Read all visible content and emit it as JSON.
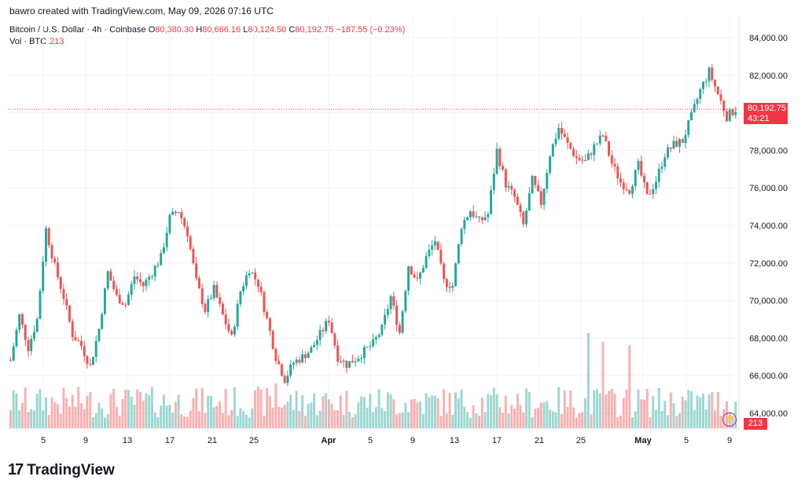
{
  "header": {
    "text": "bawro created with TradingView.com, May 09, 2026 07:16 UTC"
  },
  "legend": {
    "symbol": "Bitcoin / U.S. Dollar · 4h · Coinbase",
    "o_label": "O",
    "o": "80,380.30",
    "h_label": "H",
    "h": "80,666.16",
    "l_label": "L",
    "l": "80,124.50",
    "c_label": "C",
    "c": "80,192.75",
    "change": "−187.55 (−0.23%)"
  },
  "volume_legend": {
    "label": "Vol · BTC",
    "value": "213"
  },
  "price_tag": {
    "price": "80,192.75",
    "countdown": "43:21"
  },
  "volume_tag": "213",
  "watermark": "TradingView",
  "colors": {
    "up": "#26a69a",
    "down": "#ef5350",
    "grid": "#f0f3fa",
    "last_line": "#f23645"
  },
  "chart_data": {
    "type": "candlestick",
    "y_axis_ticks": [
      "84,000.00",
      "82,000.00",
      "80,000.00",
      "78,000.00",
      "76,000.00",
      "74,000.00",
      "72,000.00",
      "70,000.00",
      "68,000.00",
      "66,000.00",
      "64,000.00"
    ],
    "y_axis_values": [
      84000,
      82000,
      80000,
      78000,
      76000,
      74000,
      72000,
      70000,
      68000,
      66000,
      64000
    ],
    "x_axis_ticks": [
      "5",
      "9",
      "13",
      "17",
      "21",
      "25",
      "Apr",
      "5",
      "9",
      "13",
      "17",
      "21",
      "25",
      "May",
      "5",
      "9"
    ],
    "ylim": [
      63000,
      85000
    ],
    "last_price": 80192.75,
    "close_path": [
      {
        "x": 0,
        "y": 66800
      },
      {
        "x": 3,
        "y": 69200
      },
      {
        "x": 6,
        "y": 67500
      },
      {
        "x": 9,
        "y": 69000
      },
      {
        "x": 12,
        "y": 73800
      },
      {
        "x": 15,
        "y": 71800
      },
      {
        "x": 18,
        "y": 70200
      },
      {
        "x": 21,
        "y": 68200
      },
      {
        "x": 24,
        "y": 67600
      },
      {
        "x": 27,
        "y": 66500
      },
      {
        "x": 30,
        "y": 68500
      },
      {
        "x": 33,
        "y": 71500
      },
      {
        "x": 36,
        "y": 70200
      },
      {
        "x": 39,
        "y": 69800
      },
      {
        "x": 42,
        "y": 71300
      },
      {
        "x": 45,
        "y": 70800
      },
      {
        "x": 48,
        "y": 71500
      },
      {
        "x": 51,
        "y": 72300
      },
      {
        "x": 54,
        "y": 74400
      },
      {
        "x": 57,
        "y": 74800
      },
      {
        "x": 60,
        "y": 73600
      },
      {
        "x": 63,
        "y": 71000
      },
      {
        "x": 66,
        "y": 69500
      },
      {
        "x": 69,
        "y": 70600
      },
      {
        "x": 72,
        "y": 69200
      },
      {
        "x": 75,
        "y": 68000
      },
      {
        "x": 78,
        "y": 70500
      },
      {
        "x": 81,
        "y": 71700
      },
      {
        "x": 84,
        "y": 70900
      },
      {
        "x": 87,
        "y": 69000
      },
      {
        "x": 90,
        "y": 67000
      },
      {
        "x": 93,
        "y": 65800
      },
      {
        "x": 96,
        "y": 66700
      },
      {
        "x": 99,
        "y": 67000
      },
      {
        "x": 102,
        "y": 67400
      },
      {
        "x": 105,
        "y": 68200
      },
      {
        "x": 108,
        "y": 69000
      },
      {
        "x": 111,
        "y": 67000
      },
      {
        "x": 114,
        "y": 66600
      },
      {
        "x": 117,
        "y": 66900
      },
      {
        "x": 120,
        "y": 67300
      },
      {
        "x": 123,
        "y": 67700
      },
      {
        "x": 126,
        "y": 68500
      },
      {
        "x": 129,
        "y": 70200
      },
      {
        "x": 132,
        "y": 68300
      },
      {
        "x": 135,
        "y": 71900
      },
      {
        "x": 138,
        "y": 71000
      },
      {
        "x": 141,
        "y": 72300
      },
      {
        "x": 144,
        "y": 73200
      },
      {
        "x": 147,
        "y": 71000
      },
      {
        "x": 150,
        "y": 70800
      },
      {
        "x": 153,
        "y": 74000
      },
      {
        "x": 156,
        "y": 74800
      },
      {
        "x": 159,
        "y": 74200
      },
      {
        "x": 162,
        "y": 74600
      },
      {
        "x": 165,
        "y": 78000
      },
      {
        "x": 168,
        "y": 76200
      },
      {
        "x": 171,
        "y": 75500
      },
      {
        "x": 174,
        "y": 74000
      },
      {
        "x": 177,
        "y": 76400
      },
      {
        "x": 180,
        "y": 75200
      },
      {
        "x": 183,
        "y": 77800
      },
      {
        "x": 186,
        "y": 79200
      },
      {
        "x": 189,
        "y": 78300
      },
      {
        "x": 192,
        "y": 77600
      },
      {
        "x": 195,
        "y": 77400
      },
      {
        "x": 198,
        "y": 78200
      },
      {
        "x": 201,
        "y": 78800
      },
      {
        "x": 204,
        "y": 77300
      },
      {
        "x": 207,
        "y": 76300
      },
      {
        "x": 210,
        "y": 75900
      },
      {
        "x": 213,
        "y": 77200
      },
      {
        "x": 216,
        "y": 75500
      },
      {
        "x": 219,
        "y": 76400
      },
      {
        "x": 222,
        "y": 77800
      },
      {
        "x": 225,
        "y": 78300
      },
      {
        "x": 228,
        "y": 78500
      },
      {
        "x": 231,
        "y": 79800
      },
      {
        "x": 234,
        "y": 81200
      },
      {
        "x": 237,
        "y": 82200
      },
      {
        "x": 240,
        "y": 81000
      },
      {
        "x": 243,
        "y": 79800
      },
      {
        "x": 246,
        "y": 80200
      }
    ],
    "bar_count": 247,
    "volume_spikes": [
      {
        "x": 196,
        "value": 5.5
      },
      {
        "x": 201,
        "value": 5.0
      },
      {
        "x": 210,
        "value": 4.8
      },
      {
        "x": 90,
        "value": 2.6
      }
    ]
  }
}
